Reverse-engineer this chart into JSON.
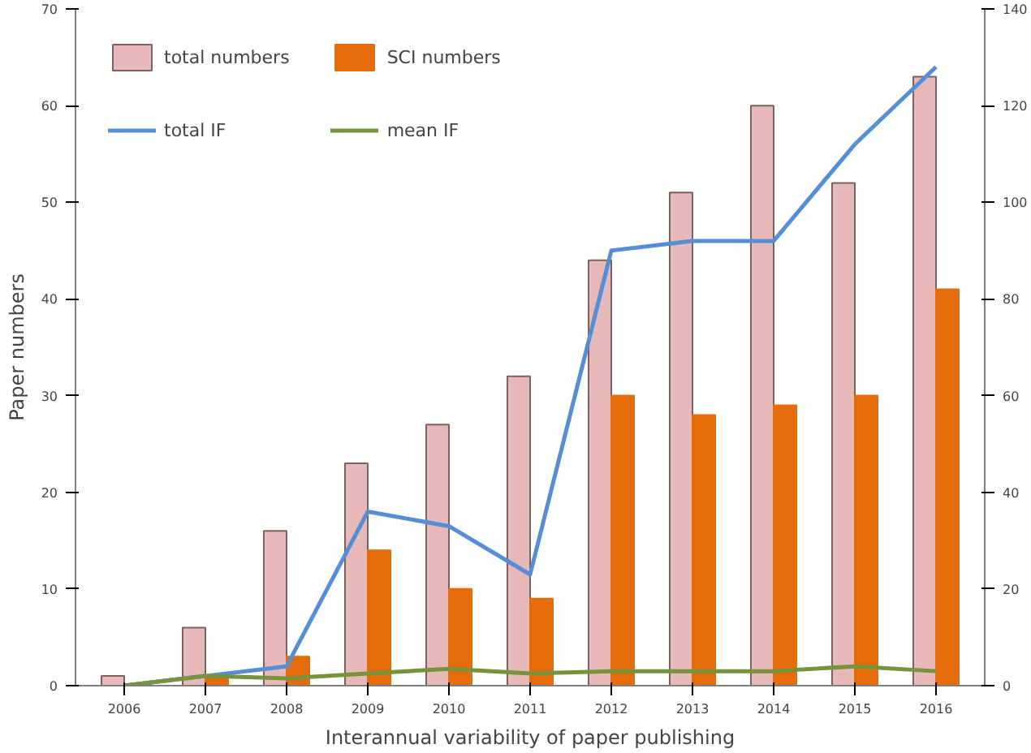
{
  "chart_data": {
    "type": "bar",
    "xlabel": "Interannual variability of paper publishing",
    "ylabel": "Paper numbers",
    "categories": [
      "2006",
      "2007",
      "2008",
      "2009",
      "2010",
      "2011",
      "2012",
      "2013",
      "2014",
      "2015",
      "2016"
    ],
    "series": [
      {
        "name": "total numbers",
        "color": "#e6b8b7",
        "values": [
          1,
          6,
          16,
          23,
          27,
          32,
          44,
          51,
          60,
          52,
          63
        ]
      },
      {
        "name": "SCI numbers",
        "color": "#e46c0a",
        "values": [
          0,
          1,
          3,
          14,
          10,
          9,
          30,
          28,
          29,
          30,
          41
        ]
      },
      {
        "name": "total IF",
        "type": "line",
        "axis": "y2",
        "color": "#558ed5",
        "values": [
          0,
          2,
          4,
          36,
          33,
          23,
          90,
          92,
          92,
          112,
          128
        ]
      },
      {
        "name": "mean IF",
        "type": "line",
        "axis": "y2",
        "color": "#77933c",
        "values": [
          0,
          2,
          1.5,
          2.5,
          3.5,
          2.5,
          3,
          3,
          3,
          4,
          3
        ]
      }
    ],
    "ylim": [
      0,
      70
    ],
    "yticks": [
      0,
      10,
      20,
      30,
      40,
      50,
      60,
      70
    ],
    "y2lim": [
      0,
      140
    ],
    "y2ticks": [
      0,
      20,
      40,
      60,
      80,
      100,
      120,
      140
    ],
    "grid": false,
    "legend": "top left"
  }
}
